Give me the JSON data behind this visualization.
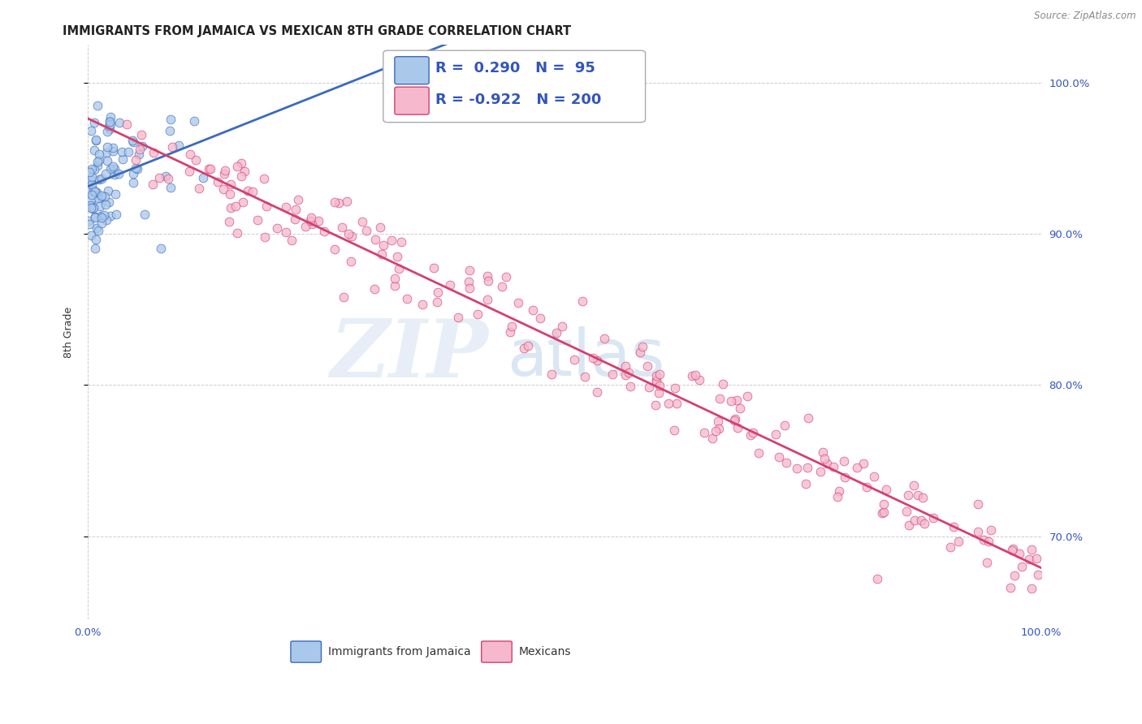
{
  "title": "IMMIGRANTS FROM JAMAICA VS MEXICAN 8TH GRADE CORRELATION CHART",
  "source": "Source: ZipAtlas.com",
  "ylabel": "8th Grade",
  "xlim": [
    0.0,
    1.0
  ],
  "ylim": [
    0.645,
    1.025
  ],
  "y_tick_labels": [
    "70.0%",
    "80.0%",
    "90.0%",
    "100.0%"
  ],
  "y_tick_positions": [
    0.7,
    0.8,
    0.9,
    1.0
  ],
  "legend_label_1": "Immigrants from Jamaica",
  "legend_label_2": "Mexicans",
  "r1": 0.29,
  "n1": 95,
  "r2": -0.922,
  "n2": 200,
  "color_jamaica": "#aac8ea",
  "color_mexico": "#f5b8cc",
  "line_color_jamaica": "#3a6bbb",
  "line_color_mexico": "#d44070",
  "watermark_zip": "ZIP",
  "watermark_atlas": "atlas",
  "grid_color": "#cccccc",
  "background_color": "#ffffff",
  "title_fontsize": 10.5,
  "label_fontsize": 9,
  "tick_fontsize": 9.5,
  "legend_fontsize": 12,
  "source_fontsize": 8.5
}
